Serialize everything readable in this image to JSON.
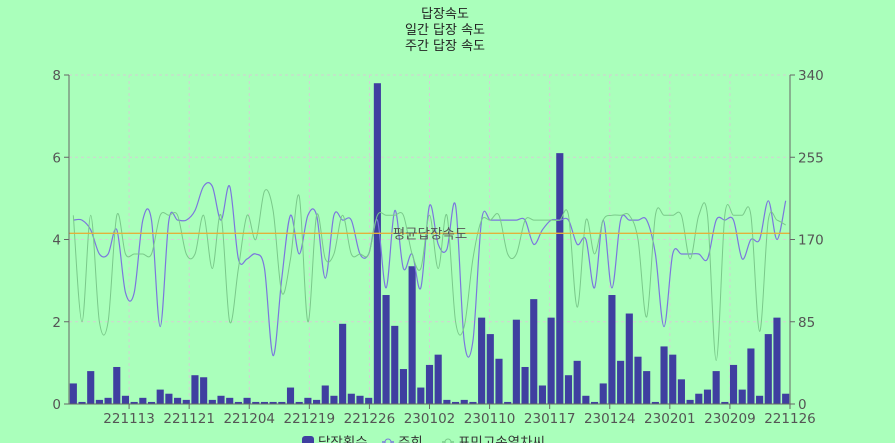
{
  "chart_data": {
    "type": "bar+line",
    "title_lines": [
      "답장속도",
      "일간 답장 속도",
      "주간 답장 속도"
    ],
    "x_tick_labels": [
      "221113",
      "221121",
      "221204",
      "221219",
      "221226",
      "230102",
      "230110",
      "230117",
      "230124",
      "230201",
      "230209",
      "221126"
    ],
    "y_left": {
      "min": 0,
      "max": 8,
      "ticks": [
        0,
        2,
        4,
        6,
        8
      ]
    },
    "y_right": {
      "min": 0,
      "max": 340,
      "ticks": [
        0,
        85,
        170,
        255,
        340
      ]
    },
    "bar_series": {
      "name": "답장횟수",
      "color": "#3f3fa0",
      "values": [
        0.5,
        0.05,
        0.8,
        0.1,
        0.15,
        0.9,
        0.2,
        0.05,
        0.15,
        0.05,
        0.35,
        0.25,
        0.15,
        0.1,
        0.7,
        0.65,
        0.1,
        0.2,
        0.15,
        0.05,
        0.15,
        0.05,
        0.05,
        0.05,
        0.05,
        0.4,
        0.05,
        0.15,
        0.1,
        0.45,
        0.2,
        1.95,
        0.25,
        0.2,
        0.15,
        7.8,
        2.65,
        1.9,
        0.85,
        3.35,
        0.4,
        0.95,
        1.2,
        0.1,
        0.05,
        0.1,
        0.05,
        2.1,
        1.7,
        1.1,
        0.05,
        2.05,
        0.9,
        2.55,
        0.45,
        2.1,
        6.1,
        0.7,
        1.05,
        0.2,
        0.05,
        0.5,
        2.65,
        1.05,
        2.2,
        1.15,
        0.8,
        0.05,
        1.4,
        1.2,
        0.6,
        0.1,
        0.25,
        0.35,
        0.8,
        0.05,
        0.95,
        0.35,
        1.35,
        0.2,
        1.7,
        2.1,
        0.25
      ]
    },
    "line_series": [
      {
        "name": "주회",
        "color": "#7b77dd",
        "values": [
          190,
          190,
          180,
          155,
          155,
          180,
          115,
          115,
          190,
          190,
          80,
          190,
          190,
          190,
          200,
          225,
          225,
          190,
          225,
          150,
          150,
          155,
          140,
          50,
          130,
          195,
          155,
          195,
          195,
          130,
          195,
          190,
          190,
          155,
          155,
          190,
          120,
          200,
          140,
          155,
          120,
          205,
          165,
          160,
          205,
          65,
          65,
          190,
          190,
          190,
          190,
          190,
          190,
          165,
          180,
          190,
          190,
          190,
          165,
          170,
          120,
          190,
          120,
          190,
          190,
          190,
          190,
          155,
          80,
          155,
          155,
          155,
          155,
          150,
          190,
          190,
          190,
          150,
          170,
          170,
          210,
          170,
          210
        ]
      },
      {
        "name": "표민고속열차씨",
        "color": "#7ac98a",
        "values": [
          195,
          85,
          195,
          85,
          85,
          195,
          155,
          155,
          155,
          155,
          195,
          195,
          195,
          155,
          155,
          195,
          140,
          195,
          85,
          140,
          195,
          170,
          220,
          200,
          115,
          150,
          215,
          85,
          195,
          150,
          155,
          195,
          155,
          155,
          155,
          195,
          195,
          195,
          195,
          155,
          140,
          195,
          140,
          195,
          85,
          80,
          150,
          190,
          190,
          195,
          155,
          155,
          190,
          190,
          190,
          190,
          190,
          195,
          100,
          190,
          155,
          190,
          195,
          195,
          195,
          170,
          90,
          195,
          195,
          195,
          195,
          150,
          195,
          195,
          45,
          195,
          195,
          195,
          195,
          75,
          190,
          190,
          185
        ]
      }
    ],
    "reference_line": {
      "label": "평균답장속도",
      "y_left": 4.15,
      "color": "#e2b13c"
    },
    "legend": {
      "position": "bottom",
      "entries": [
        "답장횟수",
        "주회",
        "표민고속열차씨"
      ]
    },
    "grid": true
  }
}
